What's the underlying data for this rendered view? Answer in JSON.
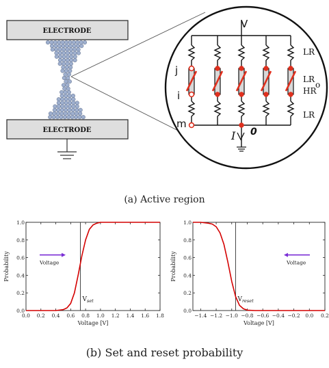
{
  "figure_a": {
    "electrode_top": "ELECTRODE",
    "electrode_bottom": "ELECTRODE",
    "circuit": {
      "top_node": "V",
      "node_j": "j",
      "node_i": "i",
      "node_m": "m",
      "label_lr_top": "LR",
      "label_lr_o": "LR",
      "label_lr_o_sub": "o",
      "label_hr": "HR",
      "label_lr_bottom": "LR",
      "current_symbol": "I",
      "ground_node": "0"
    },
    "caption": "(a) Active region"
  },
  "figure_b": {
    "caption": "(b) Set and reset probability"
  },
  "chart_data": [
    {
      "type": "line",
      "xlabel": "Voltage [V]",
      "ylabel": "Probability",
      "xlim": [
        0.0,
        1.8
      ],
      "ylim": [
        0.0,
        1.0
      ],
      "x_ticks": [
        "0.0",
        "0.2",
        "0.4",
        "0.6",
        "0.8",
        "1.0",
        "1.2",
        "1.4",
        "1.6",
        "1.8"
      ],
      "y_ticks": [
        "0.0",
        "0.2",
        "0.4",
        "0.6",
        "0.8",
        "1.0"
      ],
      "threshold_x": 0.73,
      "threshold_label": "V",
      "threshold_label_sub": "set",
      "arrow_label": "Voltage",
      "arrow_direction": "right",
      "line_color": "#d40000",
      "arrow_color": "#7b2fd6",
      "x": [
        0.0,
        0.2,
        0.4,
        0.5,
        0.55,
        0.6,
        0.65,
        0.7,
        0.75,
        0.8,
        0.85,
        0.9,
        0.95,
        1.0,
        1.2,
        1.4,
        1.6,
        1.8
      ],
      "values": [
        0.0,
        0.0,
        0.0,
        0.01,
        0.03,
        0.08,
        0.2,
        0.4,
        0.62,
        0.8,
        0.92,
        0.97,
        0.99,
        1.0,
        1.0,
        1.0,
        1.0,
        1.0
      ]
    },
    {
      "type": "line",
      "xlabel": "Voltage [V]",
      "ylabel": "Probability",
      "xlim": [
        -1.5,
        0.2
      ],
      "ylim": [
        0.0,
        1.0
      ],
      "x_ticks": [
        "−1.4",
        "−1.2",
        "−1.0",
        "−0.8",
        "−0.6",
        "−0.4",
        "−0.2",
        "0.0",
        "0.2"
      ],
      "y_ticks": [
        "0.0",
        "0.2",
        "0.4",
        "0.6",
        "0.8",
        "1.0"
      ],
      "threshold_x": -0.95,
      "threshold_label": "V",
      "threshold_label_sub": "reset",
      "arrow_label": "Voltage",
      "arrow_direction": "left",
      "line_color": "#d40000",
      "arrow_color": "#7b2fd6",
      "x": [
        -1.5,
        -1.4,
        -1.3,
        -1.25,
        -1.2,
        -1.15,
        -1.1,
        -1.05,
        -1.0,
        -0.95,
        -0.9,
        -0.85,
        -0.8,
        -0.7,
        -0.5,
        -0.2,
        0.0,
        0.2
      ],
      "values": [
        1.0,
        1.0,
        0.99,
        0.98,
        0.95,
        0.88,
        0.75,
        0.55,
        0.33,
        0.16,
        0.06,
        0.02,
        0.005,
        0.0,
        0.0,
        0.0,
        0.0,
        0.0
      ]
    }
  ]
}
